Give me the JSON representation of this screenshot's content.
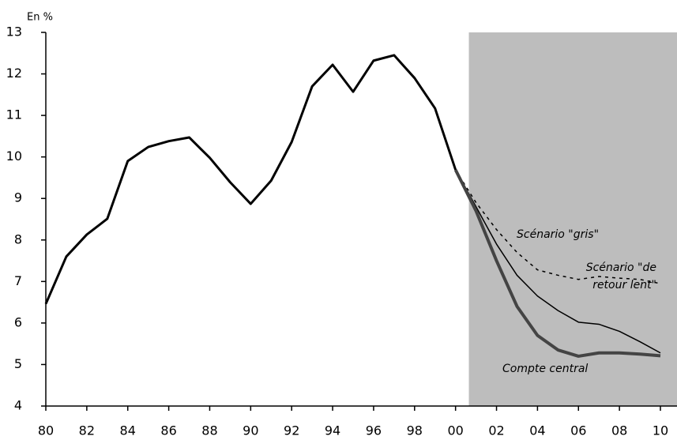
{
  "chart_data": {
    "type": "line",
    "y_label": "En %",
    "x": [
      1980,
      1981,
      1982,
      1983,
      1984,
      1985,
      1986,
      1987,
      1988,
      1989,
      1990,
      1991,
      1992,
      1993,
      1994,
      1995,
      1996,
      1997,
      1998,
      1999,
      2000,
      2001,
      2002,
      2003,
      2004,
      2005,
      2006,
      2007,
      2008,
      2009,
      2010
    ],
    "series": [
      {
        "color": "#000000",
        "style": "solid",
        "width": 3,
        "values": [
          6.46,
          7.6,
          8.13,
          8.51,
          9.9,
          10.24,
          10.38,
          10.47,
          9.98,
          9.39,
          8.87,
          9.43,
          10.36,
          11.7,
          12.22,
          11.57,
          12.32,
          12.45,
          11.9,
          11.17,
          9.69,
          null,
          null,
          null,
          null,
          null,
          null,
          null,
          null,
          null,
          null
        ]
      },
      {
        "name": "Scénario \"gris\"",
        "color": "#000000",
        "style": "dotted",
        "width": 1.5,
        "values": [
          null,
          null,
          null,
          null,
          null,
          null,
          null,
          null,
          null,
          null,
          null,
          null,
          null,
          null,
          null,
          null,
          null,
          null,
          null,
          null,
          9.69,
          8.9,
          8.25,
          7.7,
          7.28,
          7.15,
          7.05,
          7.12,
          7.08,
          7.05,
          6.95
        ]
      },
      {
        "name": "Scénario \"de retour lent\"",
        "color": "#000000",
        "style": "solid",
        "width": 1.5,
        "values": [
          null,
          null,
          null,
          null,
          null,
          null,
          null,
          null,
          null,
          null,
          null,
          null,
          null,
          null,
          null,
          null,
          null,
          null,
          null,
          null,
          9.69,
          8.8,
          7.9,
          7.15,
          6.65,
          6.3,
          6.02,
          5.97,
          5.8,
          5.55,
          5.28
        ]
      },
      {
        "name": "Compte central",
        "color": "#444444",
        "style": "solid",
        "width": 4,
        "values": [
          null,
          null,
          null,
          null,
          null,
          null,
          null,
          null,
          null,
          null,
          null,
          null,
          null,
          null,
          null,
          null,
          null,
          null,
          null,
          null,
          9.69,
          8.7,
          7.5,
          6.4,
          5.7,
          5.35,
          5.2,
          5.28,
          5.28,
          5.25,
          5.21
        ]
      }
    ],
    "forecast_start": 2000.65,
    "shade_color": "#bdbdbd",
    "xlim": [
      1980,
      2010
    ],
    "xticks": [
      {
        "value": 1980,
        "label": "80"
      },
      {
        "value": 1982,
        "label": "82"
      },
      {
        "value": 1984,
        "label": "84"
      },
      {
        "value": 1986,
        "label": "86"
      },
      {
        "value": 1988,
        "label": "88"
      },
      {
        "value": 1990,
        "label": "90"
      },
      {
        "value": 1992,
        "label": "92"
      },
      {
        "value": 1994,
        "label": "94"
      },
      {
        "value": 1996,
        "label": "96"
      },
      {
        "value": 1998,
        "label": "98"
      },
      {
        "value": 2000,
        "label": "00"
      },
      {
        "value": 2002,
        "label": "02"
      },
      {
        "value": 2004,
        "label": "04"
      },
      {
        "value": 2006,
        "label": "06"
      },
      {
        "value": 2008,
        "label": "08"
      },
      {
        "value": 2010,
        "label": "10"
      }
    ],
    "ylim": [
      4,
      13
    ],
    "yticks": [
      4,
      5,
      6,
      7,
      8,
      9,
      10,
      11,
      12,
      13
    ],
    "grid": false
  }
}
